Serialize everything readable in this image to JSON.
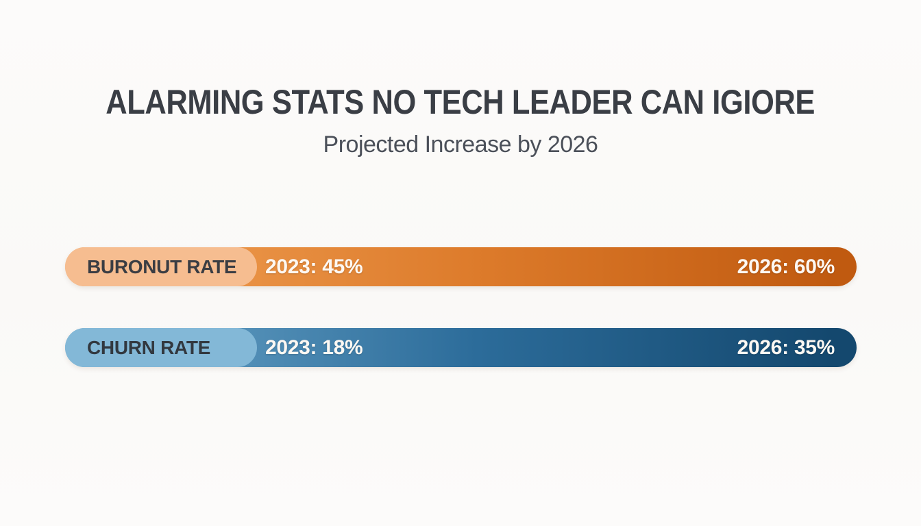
{
  "header": {
    "title": "ALARMING STATS NO TECH LEADER CAN IGIORE",
    "subtitle": "Projected Increase by 2026",
    "title_color": "#3A3E45",
    "subtitle_color": "#4B5059"
  },
  "bars": [
    {
      "label": "BURONUT RATE",
      "value_2023": "2023: 45%",
      "value_2026": "2026: 60%",
      "label_bg": "#F6BD90",
      "label_text_color": "#3A3D43",
      "gradient_start": "#F1A257",
      "gradient_mid": "#DD7B2B",
      "gradient_end": "#C05A10"
    },
    {
      "label": "CHURN RATE",
      "value_2023": "2023: 18%",
      "value_2026": "2026: 35%",
      "label_bg": "#83B8D7",
      "label_text_color": "#32383F",
      "gradient_start": "#6FA9CC",
      "gradient_mid": "#2C6C9A",
      "gradient_end": "#14486E"
    }
  ],
  "chart_data": {
    "type": "bar",
    "orientation": "horizontal",
    "title": "ALARMING STATS NO TECH LEADER CAN IGIORE",
    "subtitle": "Projected Increase by 2026",
    "categories": [
      "BURONUT RATE",
      "CHURN RATE"
    ],
    "series": [
      {
        "name": "2023",
        "values": [
          45,
          18
        ]
      },
      {
        "name": "2026",
        "values": [
          60,
          35
        ]
      }
    ],
    "unit": "%",
    "legend_position": "none",
    "grid": false,
    "colors": {
      "BURONUT RATE": "#D9732A",
      "CHURN RATE": "#2F72A0"
    }
  }
}
